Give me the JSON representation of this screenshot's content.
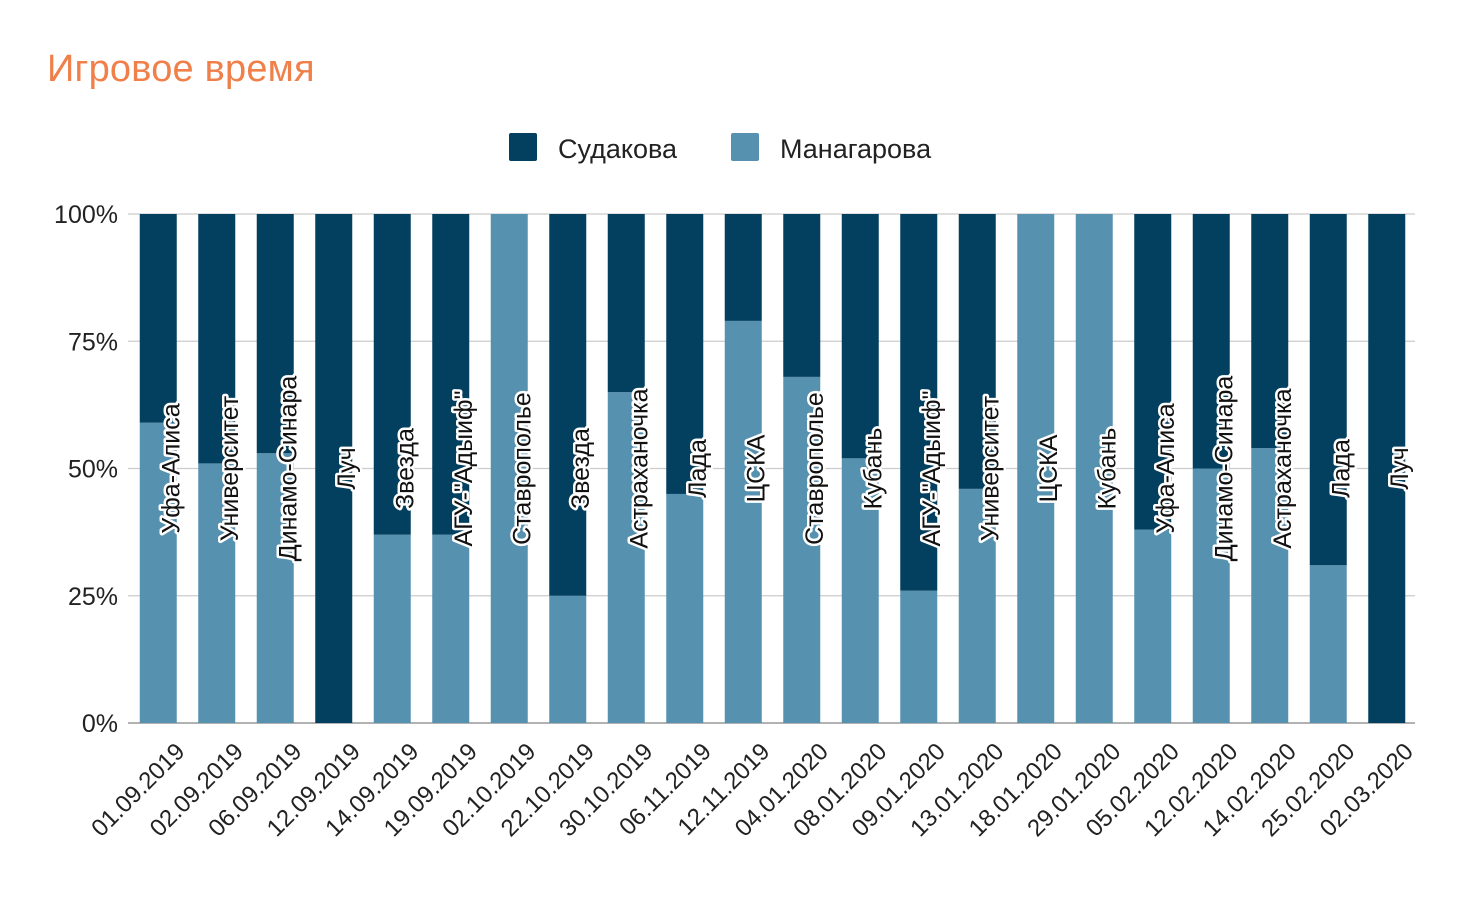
{
  "chart_data": {
    "type": "bar",
    "stacked": "percent",
    "title": "Игровое время",
    "xlabel": "",
    "ylabel": "",
    "ylim": [
      0,
      100
    ],
    "y_ticks": [
      "0%",
      "25%",
      "50%",
      "75%",
      "100%"
    ],
    "legend_position": "top-center",
    "categories": [
      "01.09.2019",
      "02.09.2019",
      "06.09.2019",
      "12.09.2019",
      "14.09.2019",
      "19.09.2019",
      "02.10.2019",
      "22.10.2019",
      "30.10.2019",
      "06.11.2019",
      "12.11.2019",
      "04.01.2020",
      "08.01.2020",
      "09.01.2020",
      "13.01.2020",
      "18.01.2020",
      "29.01.2020",
      "05.02.2020",
      "12.02.2020",
      "14.02.2020",
      "25.02.2020",
      "02.03.2020"
    ],
    "opponents": [
      "Уфа-Алиса",
      "Университет",
      "Динамо-Синара",
      "Луч",
      "Звезда",
      "АГУ-\"Адыиф\"",
      "Ставрополье",
      "Звезда",
      "Астраханочка",
      "Лада",
      "ЦСКА",
      "Ставрополье",
      "Кубань",
      "АГУ-\"Адыиф\"",
      "Университет",
      "ЦСКА",
      "Кубань",
      "Уфа-Алиса",
      "Динамо-Синара",
      "Астраханочка",
      "Лада",
      "Луч"
    ],
    "series": [
      {
        "name": "Манагарова",
        "color": "#5791b0",
        "values": [
          59,
          51,
          53,
          0,
          37,
          37,
          100,
          25,
          65,
          45,
          79,
          68,
          52,
          26,
          46,
          100,
          100,
          38,
          50,
          54,
          31,
          0
        ]
      },
      {
        "name": "Судакова",
        "color": "#033f5e",
        "values": [
          41,
          49,
          47,
          100,
          63,
          63,
          0,
          75,
          35,
          55,
          21,
          32,
          48,
          74,
          54,
          0,
          0,
          62,
          50,
          46,
          69,
          100
        ]
      }
    ],
    "legend": [
      "Судакова",
      "Манагарова"
    ],
    "gridline_color": "#cccccc"
  }
}
